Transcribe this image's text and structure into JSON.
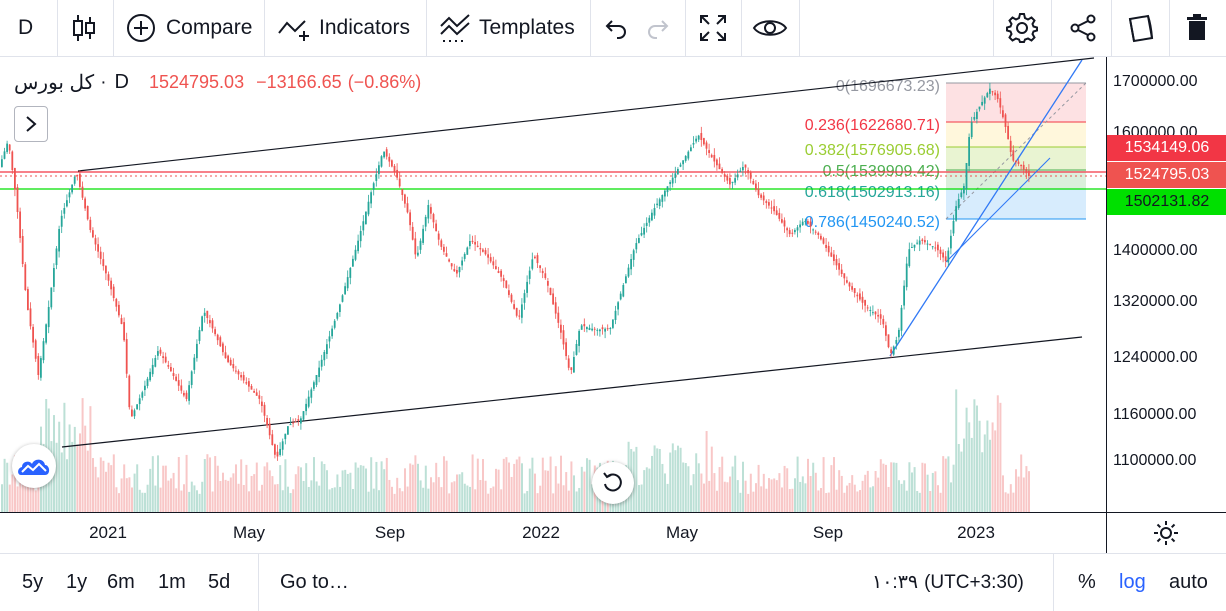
{
  "toolbar": {
    "interval": "D",
    "compare_label": "Compare",
    "indicators_label": "Indicators",
    "templates_label": "Templates"
  },
  "legend": {
    "symbol": "کل بورس",
    "dot": "·",
    "resolution": "D",
    "price": "1524795.03",
    "change": "−13166.65",
    "change_pct": "(−0.86%)"
  },
  "price_axis": {
    "labels": [
      "1700000.00",
      "1600000.00",
      "1400000.00",
      "1320000.00",
      "1240000.00",
      "1160000.00",
      "1100000.00"
    ],
    "tags": [
      {
        "value": "1534149.06",
        "color": "#f23645"
      },
      {
        "value": "1524795.03",
        "color": "#ef5350"
      },
      {
        "value": "1502131.82",
        "color": "#00e000"
      }
    ]
  },
  "time_axis": {
    "labels": [
      "2021",
      "May",
      "Sep",
      "2022",
      "May",
      "Sep",
      "2023"
    ]
  },
  "fib": {
    "levels": [
      {
        "label": "0(1696673.23)",
        "color": "#9598a1"
      },
      {
        "label": "0.236(1622680.71)",
        "color": "#f23645"
      },
      {
        "label": "0.382(1576905.68)",
        "color": "#9acd32"
      },
      {
        "label": "0.5(1539909.42)",
        "color": "#4caf50"
      },
      {
        "label": "0.618(1502913.16)",
        "color": "#26a69a"
      },
      {
        "label": "0.786(1450240.52)",
        "color": "#2196f3"
      }
    ]
  },
  "bottom_bar": {
    "ranges": [
      "5y",
      "1y",
      "6m",
      "1m",
      "5d"
    ],
    "goto_label": "Go to…",
    "time": "۱۰:۳۹",
    "timezone": "(UTC+3:30)",
    "percent": "%",
    "log": "log",
    "auto": "auto"
  },
  "colors": {
    "up": "#26a69a",
    "down": "#ef5350",
    "accent": "#2962ff"
  }
}
